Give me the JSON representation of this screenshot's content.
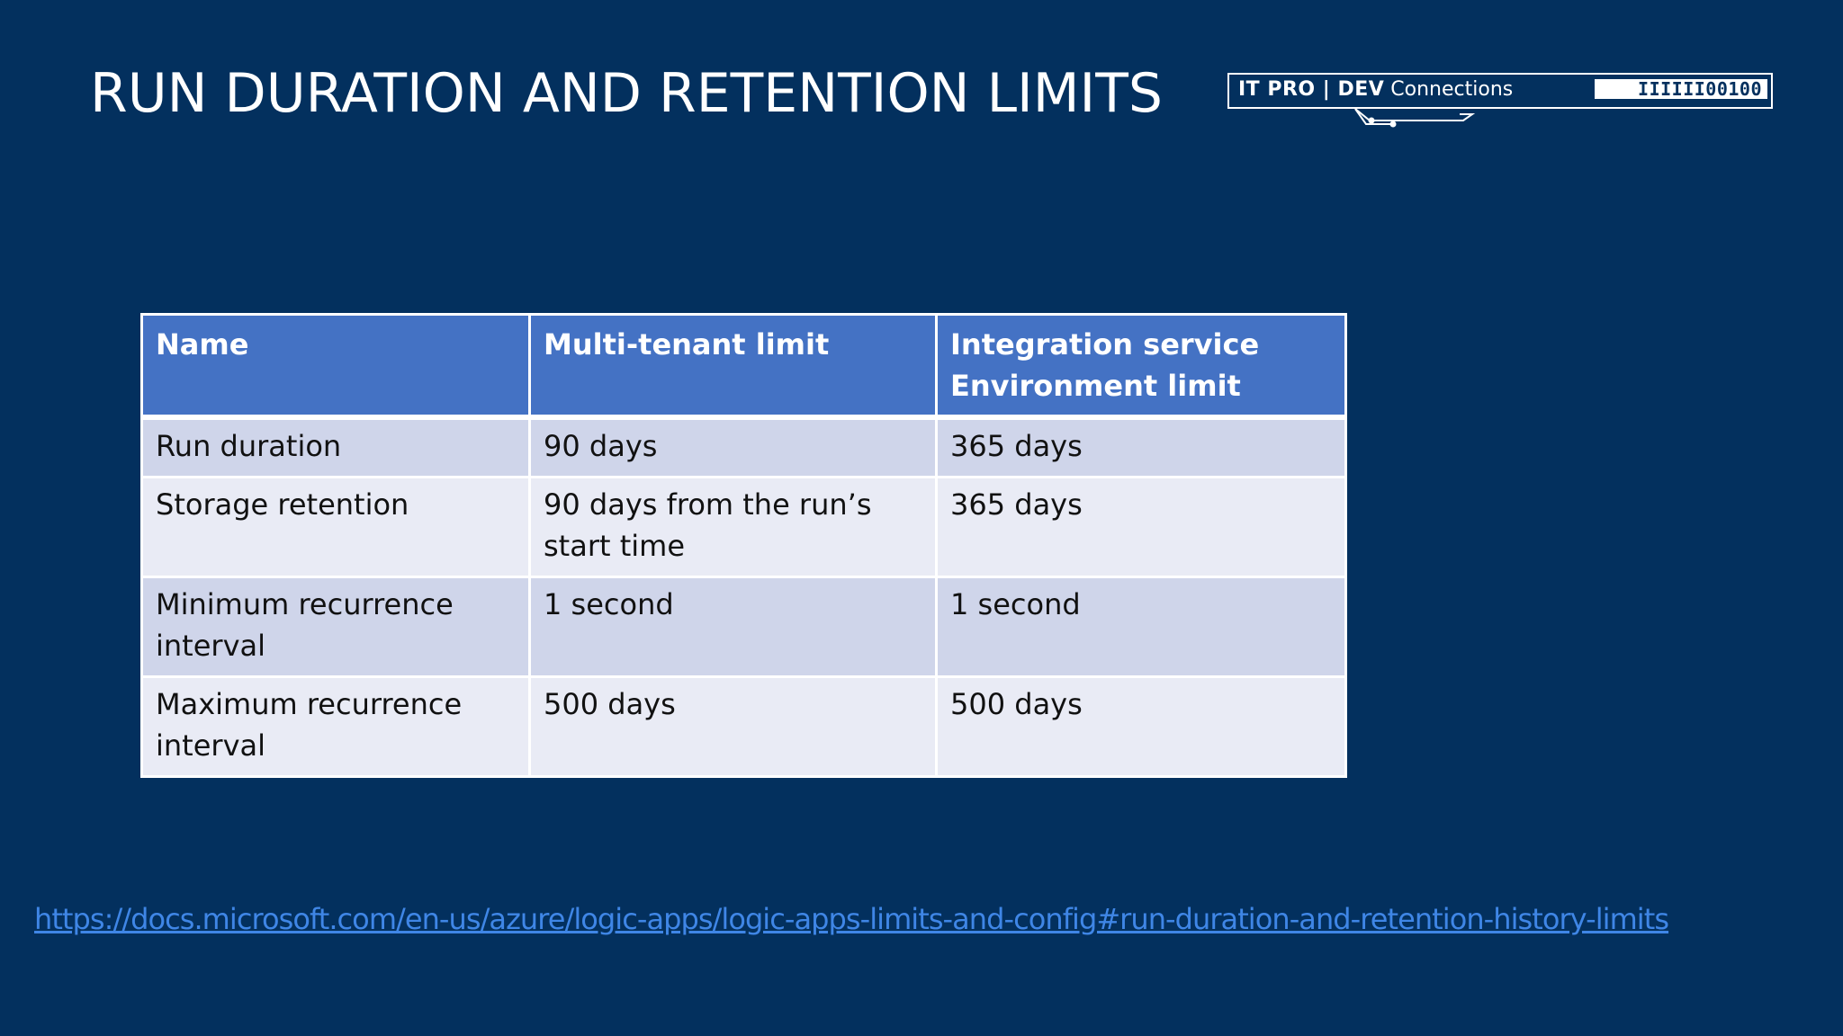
{
  "slide": {
    "title": "RUN DURATION AND RETENTION LIMITS",
    "logo": {
      "text_bold": "IT PRO | DEV",
      "text_regular": "Connections",
      "code": "IIIIII00100"
    },
    "table": {
      "headers": [
        "Name",
        "Multi-tenant limit",
        "Integration service Environment limit"
      ],
      "rows": [
        [
          "Run duration",
          "90 days",
          "365 days"
        ],
        [
          "Storage retention",
          "90 days from the run’s start time",
          "365 days"
        ],
        [
          "Minimum recurrence interval",
          "1 second",
          "1 second"
        ],
        [
          "Maximum recurrence interval",
          "500 days",
          "500 days"
        ]
      ]
    },
    "reference_link": "https://docs.microsoft.com/en-us/azure/logic-apps/logic-apps-limits-and-config#run-duration-and-retention-history-limits"
  },
  "colors": {
    "background": "#03305e",
    "header_fill": "#4472c4",
    "row_band_dark": "#cfd5ea",
    "row_band_light": "#e9ebf5",
    "link": "#3f86e6"
  }
}
